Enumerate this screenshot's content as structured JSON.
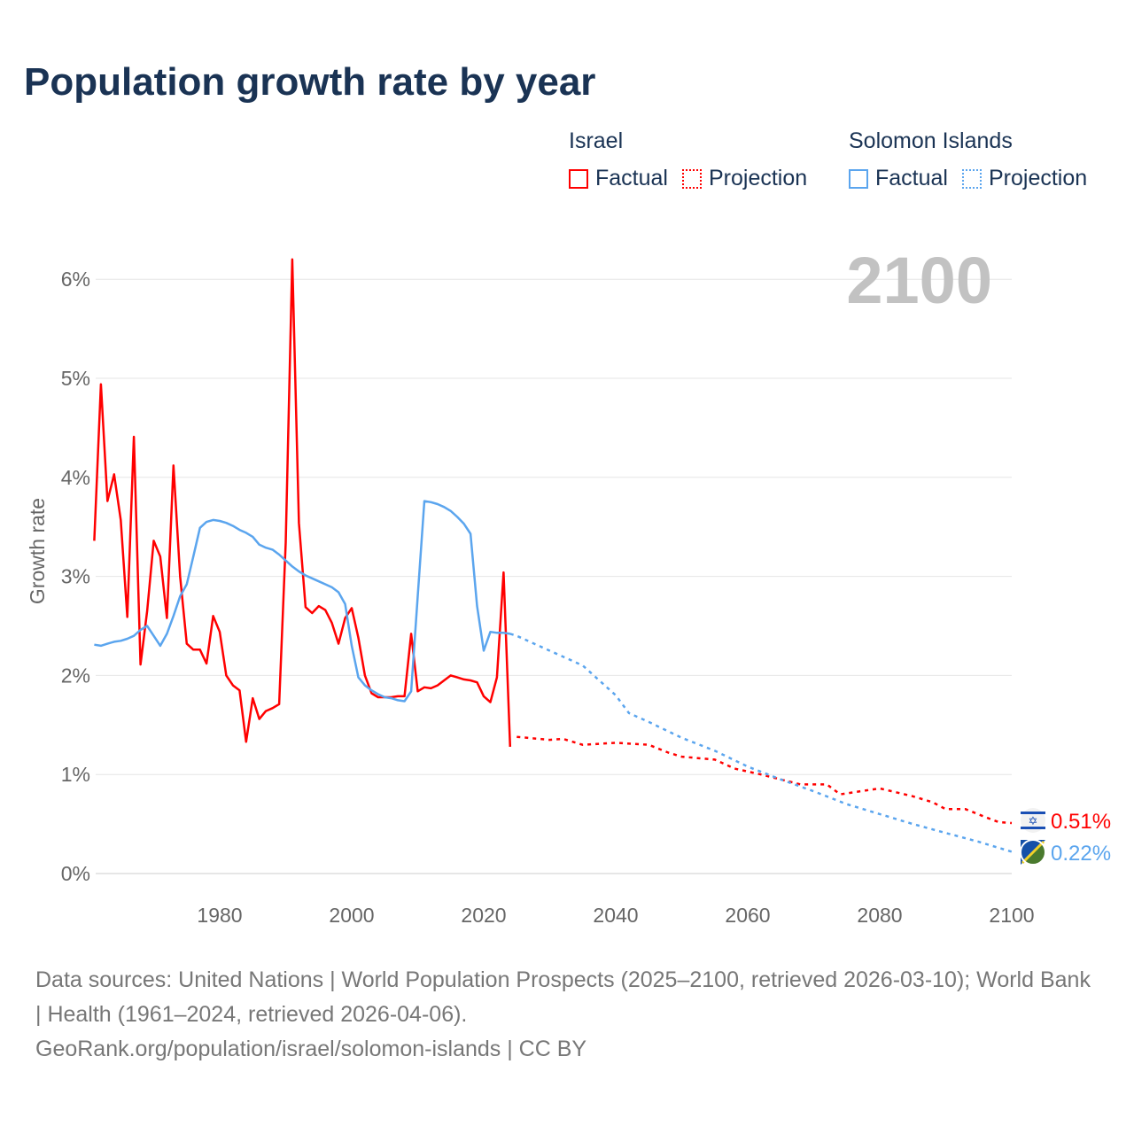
{
  "title": "Population growth rate by year",
  "legend": {
    "groups": [
      {
        "name": "Israel",
        "factual": "Factual",
        "projection": "Projection",
        "color": "#ff0000"
      },
      {
        "name": "Solomon Islands",
        "factual": "Factual",
        "projection": "Projection",
        "color": "#5ba5ee"
      }
    ]
  },
  "year_label": "2100",
  "footer": {
    "line1": "Data sources: United Nations | World Population Prospects (2025–2100, retrieved 2026-03-10); World Bank | Health (1961–2024, retrieved 2026-04-06).",
    "line2": "GeoRank.org/population/israel/solomon-islands | CC BY"
  },
  "chart_data": {
    "type": "line",
    "title": "Population growth rate by year",
    "xlabel": "",
    "ylabel": "Growth rate",
    "xlim": [
      1961,
      2100
    ],
    "ylim": [
      0,
      6
    ],
    "xticks": [
      "1980",
      "2000",
      "2020",
      "2040",
      "2060",
      "2080",
      "2100"
    ],
    "yticks": [
      "0%",
      "1%",
      "2%",
      "3%",
      "4%",
      "5%",
      "6%"
    ],
    "grid": true,
    "series": [
      {
        "name": "Israel",
        "color": "#ff0000",
        "end_label": "0.51%",
        "flag": "israel-flag",
        "factual_start": 1961,
        "factual": [
          3.36,
          4.94,
          3.76,
          4.03,
          3.57,
          2.59,
          4.41,
          2.11,
          2.65,
          3.36,
          3.2,
          2.58,
          4.12,
          3.0,
          2.32,
          2.26,
          2.26,
          2.12,
          2.6,
          2.44,
          2.0,
          1.9,
          1.85,
          1.33,
          1.77,
          1.56,
          1.64,
          1.67,
          1.71,
          3.34,
          6.2,
          3.54,
          2.69,
          2.63,
          2.7,
          2.66,
          2.53,
          2.32,
          2.58,
          2.68,
          2.38,
          2.0,
          1.82,
          1.78,
          1.78,
          1.78,
          1.79,
          1.79,
          2.42,
          1.84,
          1.88,
          1.87,
          1.9,
          1.95,
          2.0,
          1.98,
          1.96,
          1.95,
          1.93,
          1.79,
          1.73,
          1.98,
          3.04,
          1.28
        ],
        "projection": [
          [
            2025,
            1.38
          ],
          [
            2030,
            1.35
          ],
          [
            2032,
            1.36
          ],
          [
            2035,
            1.3
          ],
          [
            2040,
            1.32
          ],
          [
            2045,
            1.3
          ],
          [
            2048,
            1.22
          ],
          [
            2050,
            1.18
          ],
          [
            2055,
            1.15
          ],
          [
            2058,
            1.06
          ],
          [
            2062,
            1.0
          ],
          [
            2065,
            0.95
          ],
          [
            2068,
            0.9
          ],
          [
            2072,
            0.9
          ],
          [
            2074,
            0.8
          ],
          [
            2078,
            0.84
          ],
          [
            2080,
            0.86
          ],
          [
            2085,
            0.78
          ],
          [
            2088,
            0.72
          ],
          [
            2090,
            0.65
          ],
          [
            2093,
            0.65
          ],
          [
            2096,
            0.57
          ],
          [
            2098,
            0.52
          ],
          [
            2100,
            0.51
          ]
        ]
      },
      {
        "name": "Solomon Islands",
        "color": "#5ba5ee",
        "end_label": "0.22%",
        "flag": "solomon-islands-flag",
        "factual_start": 1961,
        "factual": [
          2.31,
          2.3,
          2.32,
          2.34,
          2.35,
          2.37,
          2.4,
          2.46,
          2.5,
          2.4,
          2.3,
          2.42,
          2.6,
          2.8,
          2.92,
          3.2,
          3.49,
          3.55,
          3.57,
          3.56,
          3.54,
          3.51,
          3.47,
          3.44,
          3.4,
          3.32,
          3.29,
          3.27,
          3.22,
          3.16,
          3.1,
          3.05,
          3.01,
          2.98,
          2.95,
          2.92,
          2.89,
          2.84,
          2.72,
          2.3,
          1.98,
          1.9,
          1.85,
          1.81,
          1.78,
          1.77,
          1.75,
          1.74,
          1.84,
          2.8,
          3.76,
          3.75,
          3.73,
          3.7,
          3.66,
          3.6,
          3.53,
          3.43,
          2.7,
          2.25,
          2.44,
          2.43,
          2.43,
          2.42
        ],
        "projection": [
          [
            2024,
            2.42
          ],
          [
            2025,
            2.4
          ],
          [
            2030,
            2.25
          ],
          [
            2035,
            2.1
          ],
          [
            2040,
            1.8
          ],
          [
            2042,
            1.62
          ],
          [
            2045,
            1.53
          ],
          [
            2050,
            1.37
          ],
          [
            2055,
            1.24
          ],
          [
            2060,
            1.08
          ],
          [
            2065,
            0.95
          ],
          [
            2070,
            0.83
          ],
          [
            2075,
            0.7
          ],
          [
            2080,
            0.6
          ],
          [
            2085,
            0.5
          ],
          [
            2090,
            0.41
          ],
          [
            2095,
            0.32
          ],
          [
            2100,
            0.22
          ]
        ]
      }
    ]
  }
}
